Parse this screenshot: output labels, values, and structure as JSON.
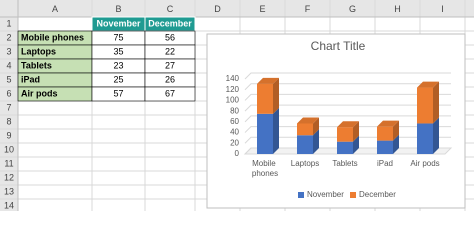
{
  "sheet": {
    "columns": [
      "A",
      "B",
      "C",
      "D",
      "E",
      "F",
      "G",
      "H",
      "I"
    ],
    "rows": [
      1,
      2,
      3,
      4,
      5,
      6,
      7,
      8,
      9,
      10,
      11,
      12,
      13,
      14
    ],
    "table": {
      "header": [
        "November",
        "December"
      ],
      "rows": [
        [
          "Mobile phones",
          75,
          56
        ],
        [
          "Laptops",
          35,
          22
        ],
        [
          "Tablets",
          23,
          27
        ],
        [
          "iPad",
          25,
          26
        ],
        [
          "Air pods",
          57,
          67
        ]
      ]
    }
  },
  "chart_data": {
    "type": "bar3d-stacked",
    "title": "Chart Title",
    "categories": [
      "Mobile phones",
      "Laptops",
      "Tablets",
      "iPad",
      "Air pods"
    ],
    "series": [
      {
        "name": "November",
        "color": "#4472c4",
        "values": [
          75,
          35,
          23,
          25,
          57
        ]
      },
      {
        "name": "December",
        "color": "#ed7d31",
        "values": [
          56,
          22,
          27,
          26,
          67
        ]
      }
    ],
    "ylim": [
      0,
      140
    ],
    "yticks": [
      0,
      20,
      40,
      60,
      80,
      100,
      120,
      140
    ],
    "grid": true,
    "legend": "bottom"
  }
}
